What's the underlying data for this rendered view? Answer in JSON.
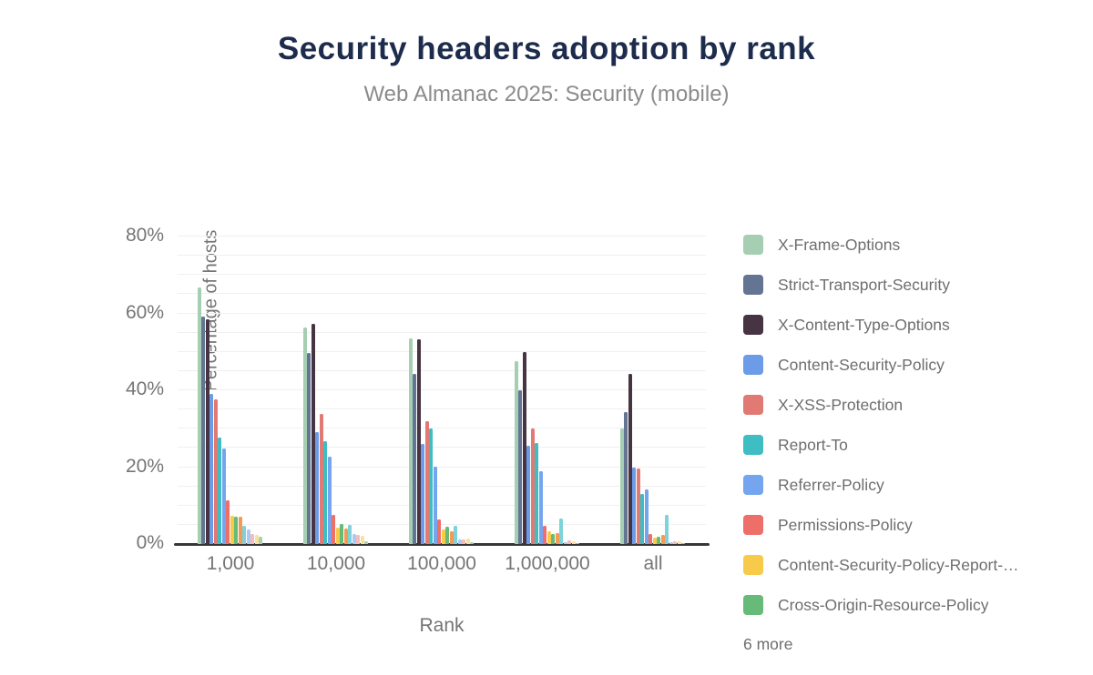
{
  "header": {
    "title": "Security headers adoption by rank",
    "subtitle": "Web Almanac 2025: Security (mobile)"
  },
  "chart_data": {
    "type": "bar",
    "title": "Security headers adoption by rank",
    "subtitle": "Web Almanac 2025: Security (mobile)",
    "xlabel": "Rank",
    "ylabel": "Percentage of hosts",
    "ylim": [
      0,
      80
    ],
    "ytick_step": 20,
    "gridline_step": 5,
    "yticks": [
      "0%",
      "20%",
      "40%",
      "60%",
      "80%"
    ],
    "grid": true,
    "legend_position": "right",
    "legend_more_label": "6 more",
    "categories": [
      "1,000",
      "10,000",
      "100,000",
      "1,000,000",
      "all"
    ],
    "series": [
      {
        "name": "X-Frame-Options",
        "legend_label": "X-Frame-Options",
        "color": "#a5ceb2",
        "values": [
          66.7,
          56.3,
          53.5,
          47.6,
          30.1
        ]
      },
      {
        "name": "Strict-Transport-Security",
        "legend_label": "Strict-Transport-Security",
        "color": "#647593",
        "values": [
          59.2,
          49.7,
          44.3,
          40.0,
          34.3
        ]
      },
      {
        "name": "X-Content-Type-Options",
        "legend_label": "X-Content-Type-Options",
        "color": "#463442",
        "values": [
          58.5,
          57.3,
          53.3,
          49.9,
          44.3
        ]
      },
      {
        "name": "Content-Security-Policy",
        "legend_label": "Content-Security-Policy",
        "color": "#6c9be8",
        "values": [
          39.0,
          29.0,
          26.0,
          25.6,
          19.9
        ]
      },
      {
        "name": "X-XSS-Protection",
        "legend_label": "X-XSS-Protection",
        "color": "#e17a72",
        "values": [
          37.6,
          33.8,
          32.0,
          30.1,
          19.6
        ]
      },
      {
        "name": "Report-To",
        "legend_label": "Report-To",
        "color": "#3ebdc3",
        "values": [
          27.7,
          26.7,
          30.1,
          26.3,
          13.0
        ]
      },
      {
        "name": "Referrer-Policy",
        "legend_label": "Referrer-Policy",
        "color": "#74a5ee",
        "values": [
          24.9,
          22.7,
          20.1,
          18.9,
          14.2
        ]
      },
      {
        "name": "Permissions-Policy",
        "legend_label": "Permissions-Policy",
        "color": "#ee6e69",
        "values": [
          11.3,
          7.6,
          6.4,
          4.7,
          2.7
        ]
      },
      {
        "name": "Content-Security-Policy-Report-…",
        "legend_label": "Content-Security-Policy-Report-…",
        "color": "#f8ca49",
        "values": [
          7.4,
          4.3,
          3.9,
          3.4,
          1.6
        ]
      },
      {
        "name": "Cross-Origin-Resource-Policy",
        "legend_label": "Cross-Origin-Resource-Policy",
        "color": "#67bb78",
        "values": [
          7.0,
          5.2,
          4.5,
          2.7,
          1.8
        ]
      },
      {
        "name": "",
        "legend_label": null,
        "color": "#f59a54",
        "values": [
          7.2,
          4.0,
          3.3,
          2.9,
          2.4
        ]
      },
      {
        "name": "",
        "legend_label": null,
        "color": "#7ed2d9",
        "values": [
          4.8,
          5.0,
          4.8,
          6.6,
          7.6
        ]
      },
      {
        "name": "",
        "legend_label": null,
        "color": "#aac9f3",
        "values": [
          3.8,
          2.6,
          1.3,
          0.5,
          0.4
        ]
      },
      {
        "name": "",
        "legend_label": null,
        "color": "#f5bdb7",
        "values": [
          2.6,
          2.4,
          1.2,
          0.9,
          0.8
        ]
      },
      {
        "name": "",
        "legend_label": null,
        "color": "#fae1a1",
        "values": [
          2.4,
          2.1,
          1.4,
          0.8,
          0.6
        ]
      },
      {
        "name": "",
        "legend_label": null,
        "color": "#a9cfae",
        "values": [
          1.8,
          0.7,
          0.5,
          0.3,
          0.2
        ]
      }
    ]
  }
}
